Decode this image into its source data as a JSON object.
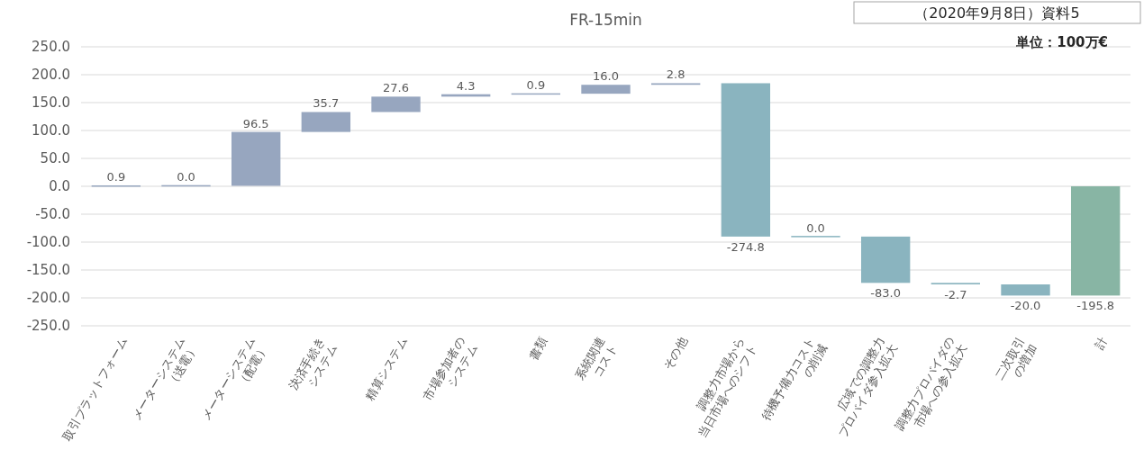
{
  "chart_data": {
    "type": "bar",
    "title": "FR-15min",
    "annotations": [
      "（2020年9月8日）資料5",
      "単位：100万€"
    ],
    "categories": [
      "取引プラットフォーム",
      "メーターシステム\n（送電）",
      "メーターシステム\n（配電）",
      "決済手続き\nシステム",
      "精算システム",
      "市場参加者の\nシステム",
      "書類",
      "系統関連\nコスト",
      "その他",
      "調整力市場から\n当日市場へのシフト",
      "待機予備力コスト\nの削減",
      "広域での調整力\nプロバイダ参入拡大",
      "調整力プロバイダの\n市場への参入拡大",
      "二次取引\nの増加",
      "計"
    ],
    "values": [
      0.9,
      0.0,
      96.5,
      35.7,
      27.6,
      4.3,
      0.9,
      16.0,
      2.8,
      -274.8,
      0.0,
      -83.0,
      -2.7,
      -20.0,
      -195.8
    ],
    "base": [
      0,
      0.9,
      0.9,
      97.4,
      133.1,
      160.7,
      165.0,
      165.9,
      181.9,
      184.7,
      -90.1,
      -90.1,
      -173.1,
      -175.8,
      0
    ],
    "colors": [
      "#97a6bf",
      "#97a6bf",
      "#97a6bf",
      "#97a6bf",
      "#97a6bf",
      "#97a6bf",
      "#97a6bf",
      "#97a6bf",
      "#97a6bf",
      "#8ab4bf",
      "#8ab4bf",
      "#8ab4bf",
      "#8ab4bf",
      "#8ab4bf",
      "#88b5a4"
    ],
    "value_labels": [
      "0.9",
      "0.0",
      "96.5",
      "35.7",
      "27.6",
      "4.3",
      "0.9",
      "16.0",
      "2.8",
      "-274.8",
      "0.0",
      "-83.0",
      "-2.7",
      "-20.0",
      "-195.8"
    ],
    "ylim": [
      -250,
      250
    ],
    "yticks": [
      {
        "value": 250,
        "label": "250.0"
      },
      {
        "value": 200,
        "label": "200.0"
      },
      {
        "value": 150,
        "label": "150.0"
      },
      {
        "value": 100,
        "label": "100.0"
      },
      {
        "value": 50,
        "label": "50.0"
      },
      {
        "value": 0,
        "label": "0.0"
      },
      {
        "value": -50,
        "label": "-50.0"
      },
      {
        "value": -100,
        "label": "-100.0"
      },
      {
        "value": -150,
        "label": "-150.0"
      },
      {
        "value": -200,
        "label": "-200.0"
      },
      {
        "value": -250,
        "label": "-250.0"
      }
    ],
    "grid": "y"
  }
}
